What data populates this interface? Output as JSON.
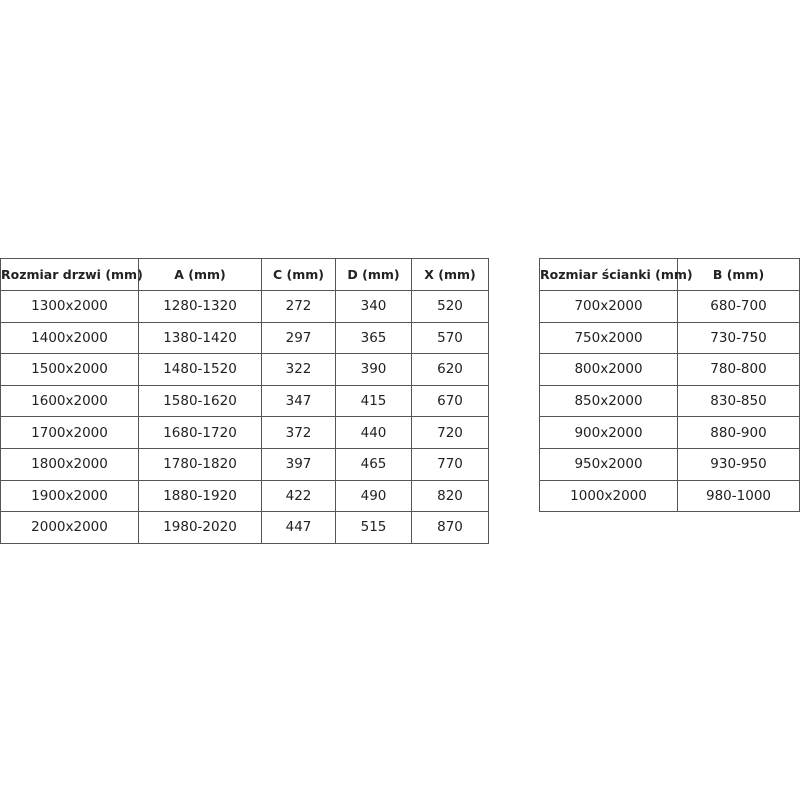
{
  "door_table": {
    "headers": [
      "Rozmiar drzwi (mm)",
      "A (mm)",
      "C (mm)",
      "D (mm)",
      "X (mm)"
    ],
    "rows": [
      [
        "1300x2000",
        "1280-1320",
        "272",
        "340",
        "520"
      ],
      [
        "1400x2000",
        "1380-1420",
        "297",
        "365",
        "570"
      ],
      [
        "1500x2000",
        "1480-1520",
        "322",
        "390",
        "620"
      ],
      [
        "1600x2000",
        "1580-1620",
        "347",
        "415",
        "670"
      ],
      [
        "1700x2000",
        "1680-1720",
        "372",
        "440",
        "720"
      ],
      [
        "1800x2000",
        "1780-1820",
        "397",
        "465",
        "770"
      ],
      [
        "1900x2000",
        "1880-1920",
        "422",
        "490",
        "820"
      ],
      [
        "2000x2000",
        "1980-2020",
        "447",
        "515",
        "870"
      ]
    ]
  },
  "wall_table": {
    "headers": [
      "Rozmiar ścianki (mm)",
      "B (mm)"
    ],
    "rows": [
      [
        "700x2000",
        "680-700"
      ],
      [
        "750x2000",
        "730-750"
      ],
      [
        "800x2000",
        "780-800"
      ],
      [
        "850x2000",
        "830-850"
      ],
      [
        "900x2000",
        "880-900"
      ],
      [
        "950x2000",
        "930-950"
      ],
      [
        "1000x2000",
        "980-1000"
      ]
    ]
  }
}
